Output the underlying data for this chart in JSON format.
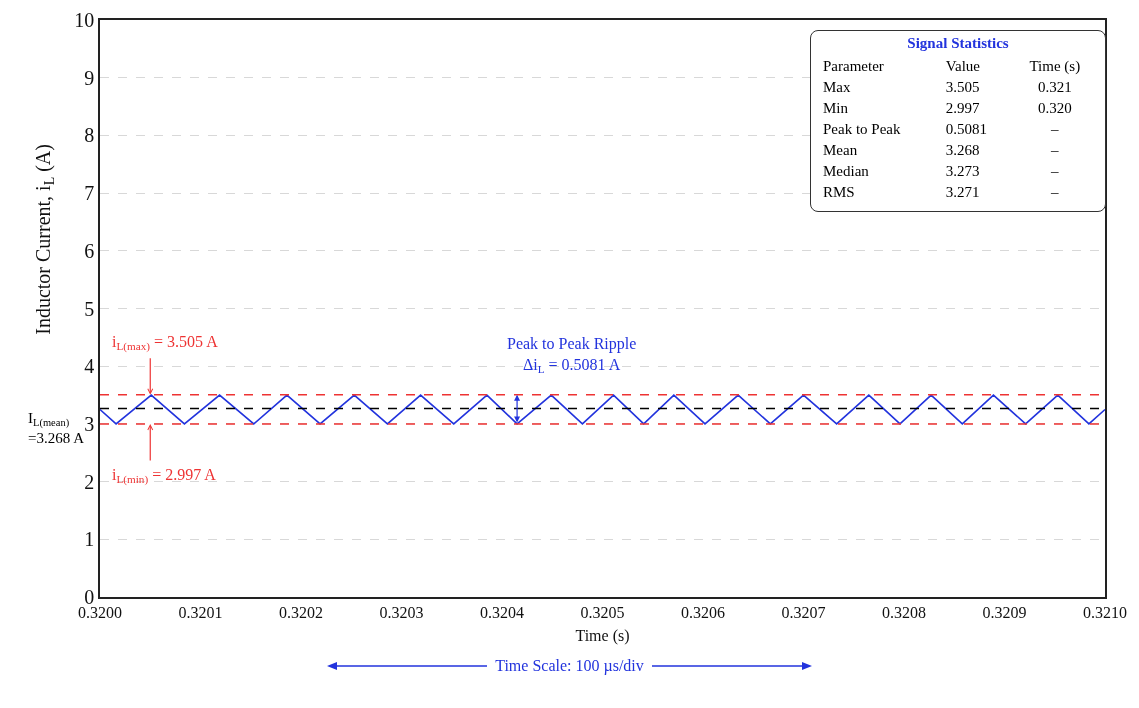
{
  "chart_data": {
    "type": "line",
    "xlabel": "Time (s)",
    "ylabel": "Inductor Current, i$_{L}$ (A)",
    "x": [
      0.32,
      0.320016,
      0.320051,
      0.320084,
      0.320119,
      0.320153,
      0.320186,
      0.320219,
      0.320253,
      0.320286,
      0.320319,
      0.320352,
      0.320385,
      0.320415,
      0.320449,
      0.32048,
      0.320511,
      0.320541,
      0.320571,
      0.320602,
      0.320635,
      0.320667,
      0.3207,
      0.320733,
      0.320765,
      0.320796,
      0.320827,
      0.320858,
      0.320889,
      0.320921,
      0.320953,
      0.320984,
      0.321
    ],
    "series": [
      {
        "color": "#2233dd",
        "values": [
          3.25,
          3.0,
          3.5,
          3.0,
          3.5,
          3.0,
          3.5,
          3.0,
          3.5,
          3.0,
          3.5,
          3.0,
          3.5,
          3.0,
          3.5,
          3.0,
          3.5,
          3.0,
          3.5,
          3.0,
          3.5,
          3.0,
          3.5,
          3.0,
          3.5,
          3.0,
          3.5,
          3.0,
          3.5,
          3.0,
          3.5,
          3.0,
          3.25
        ]
      }
    ],
    "xlim": [
      0.32,
      0.321
    ],
    "xticks": [
      {
        "value": 0.32,
        "label": "0.3200"
      },
      {
        "value": 0.3201,
        "label": "0.3201"
      },
      {
        "value": 0.3202,
        "label": "0.3202"
      },
      {
        "value": 0.3203,
        "label": "0.3203"
      },
      {
        "value": 0.3204,
        "label": "0.3204"
      },
      {
        "value": 0.3205,
        "label": "0.3205"
      },
      {
        "value": 0.3206,
        "label": "0.3206"
      },
      {
        "value": 0.3207,
        "label": "0.3207"
      },
      {
        "value": 0.3208,
        "label": "0.3208"
      },
      {
        "value": 0.3209,
        "label": "0.3209"
      },
      {
        "value": 0.321,
        "label": "0.3210"
      }
    ],
    "ylim": [
      0,
      10
    ],
    "yticks": [
      0,
      1,
      2,
      3,
      4,
      5,
      6,
      7,
      8,
      9,
      10
    ],
    "grid": "y",
    "marker": "none",
    "line_style": "solid",
    "ref_lines": [
      {
        "axis": "y",
        "value": 3.505,
        "label": "i$_{L(max)}$ = 3.505 A",
        "color": "#ee3333",
        "line_style": "dashed"
      },
      {
        "axis": "y",
        "value": 2.997,
        "label": "i$_{L(min)}$ = 2.997 A",
        "color": "#ee3333",
        "line_style": "dashed"
      },
      {
        "axis": "y",
        "value": 3.268,
        "label": "I$_{L(mean)}$\n=3.268 A",
        "color": "#000000",
        "line_style": "dashed"
      }
    ],
    "annotations": [
      {
        "text": "Peak to Peak Ripple\nΔi$_{L}$ = 0.5081 A",
        "x": 0.320415,
        "y": 3.505
      },
      "Signal Statistics",
      "Parameter",
      "Value",
      "Time (s)",
      "Max",
      "3.505",
      "0.321",
      "Min",
      "2.997",
      "0.320",
      "Peak to Peak",
      "0.5081",
      "–",
      "Mean",
      "3.268",
      "–",
      "Median",
      "3.273",
      "–",
      "RMS",
      "3.271",
      "–",
      "Time Scale: 100 µs/div"
    ]
  }
}
